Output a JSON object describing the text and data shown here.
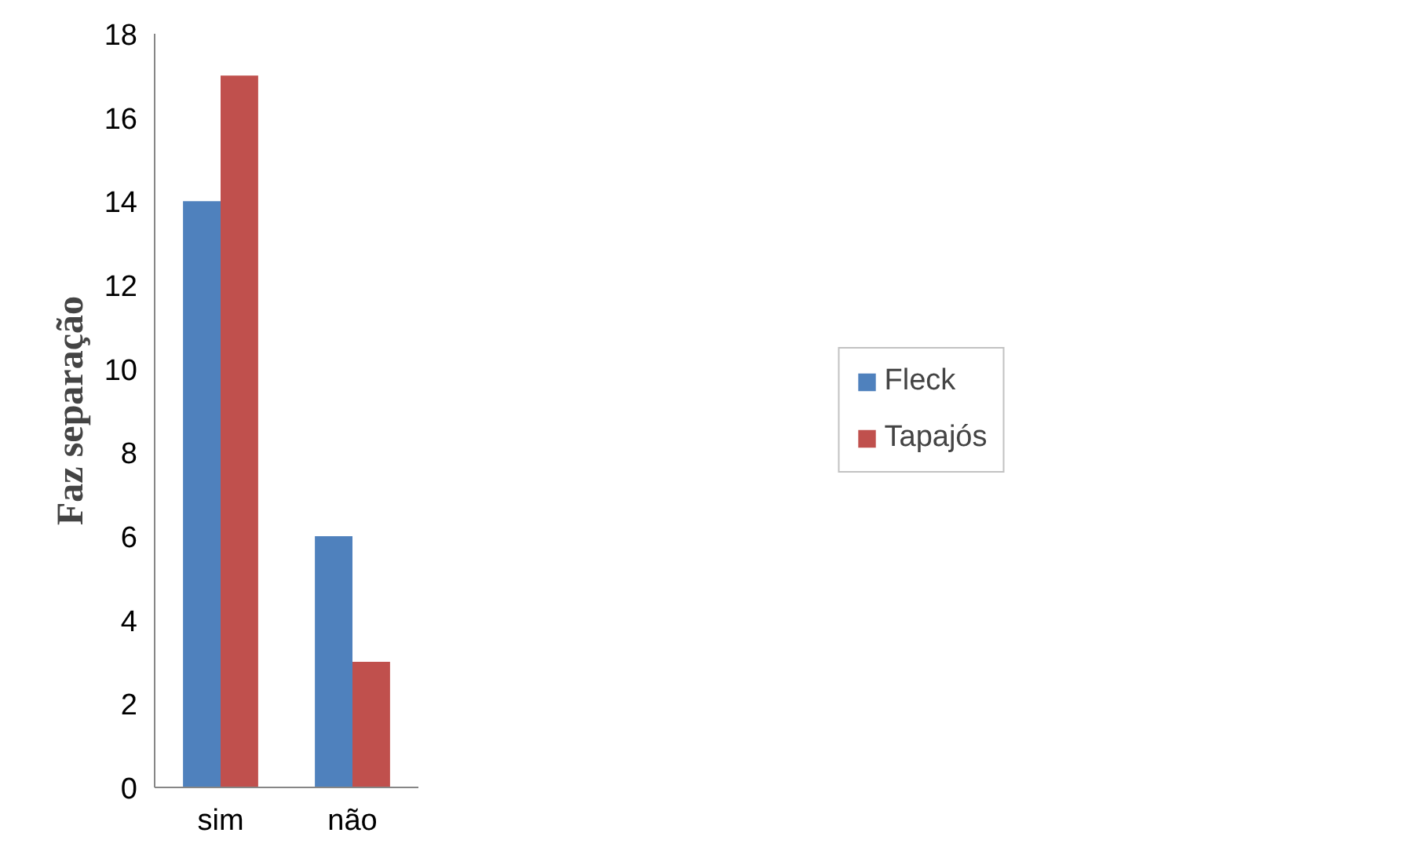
{
  "chart_data": {
    "type": "bar",
    "ylabel": "Faz separação",
    "categories": [
      "sim",
      "não"
    ],
    "series": [
      {
        "name": "Fleck",
        "color": "#4f81bd",
        "values": [
          14,
          6
        ]
      },
      {
        "name": "Tapajós",
        "color": "#c0504d",
        "values": [
          17,
          3
        ]
      }
    ],
    "ylim": [
      0,
      18
    ],
    "yticks": [
      0,
      2,
      4,
      6,
      8,
      10,
      12,
      14,
      16,
      18
    ],
    "grid": false,
    "legend": "right"
  }
}
